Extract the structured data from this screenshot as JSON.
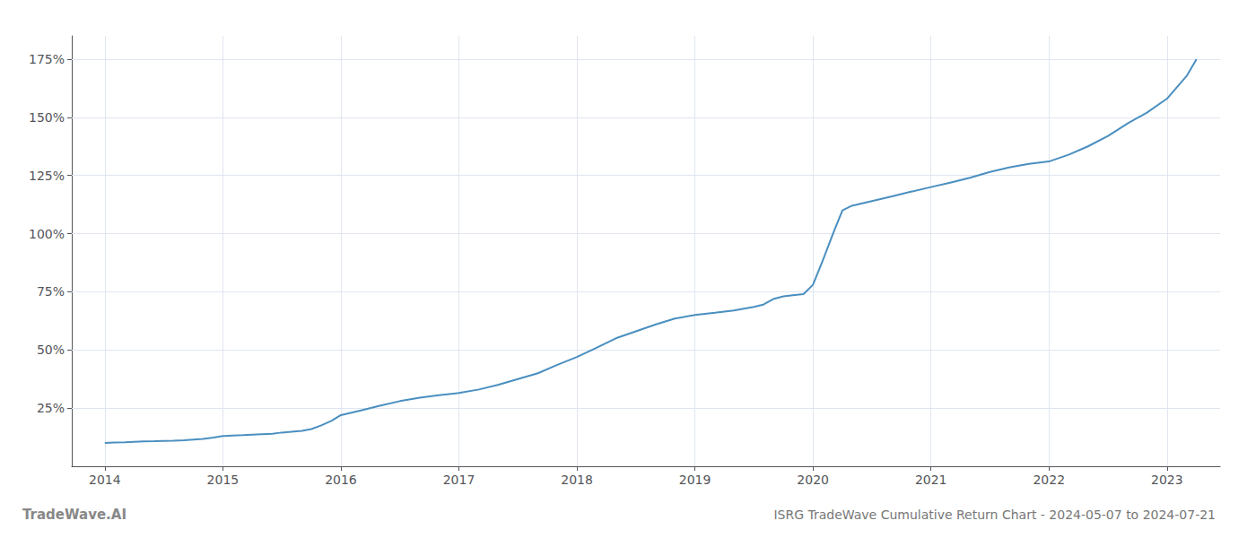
{
  "chart_data": {
    "type": "line",
    "title": "ISRG TradeWave Cumulative Return Chart - 2024-05-07 to 2024-07-21",
    "annotations": [
      "TradeWave.AI"
    ],
    "color": "#4a8fc0",
    "x": [
      2014.0,
      2014.08,
      2014.17,
      2014.25,
      2014.33,
      2014.42,
      2014.5,
      2014.58,
      2014.67,
      2014.75,
      2014.83,
      2014.92,
      2015.0,
      2015.08,
      2015.17,
      2015.25,
      2015.33,
      2015.42,
      2015.5,
      2015.58,
      2015.67,
      2015.75,
      2015.83,
      2015.92,
      2016.0,
      2016.17,
      2016.33,
      2016.5,
      2016.67,
      2016.83,
      2017.0,
      2017.17,
      2017.33,
      2017.5,
      2017.67,
      2017.83,
      2018.0,
      2018.17,
      2018.33,
      2018.5,
      2018.67,
      2018.83,
      2019.0,
      2019.17,
      2019.33,
      2019.5,
      2019.58,
      2019.67,
      2019.75,
      2019.83,
      2019.92,
      2020.0,
      2020.08,
      2020.17,
      2020.25,
      2020.33,
      2020.5,
      2020.67,
      2020.83,
      2021.0,
      2021.17,
      2021.33,
      2021.5,
      2021.67,
      2021.83,
      2022.0,
      2022.17,
      2022.33,
      2022.5,
      2022.67,
      2022.83,
      2023.0,
      2023.17,
      2023.25
    ],
    "values": [
      10.0,
      10.2,
      10.3,
      10.5,
      10.7,
      10.8,
      10.9,
      11.0,
      11.2,
      11.5,
      11.8,
      12.3,
      13.0,
      13.2,
      13.4,
      13.6,
      13.8,
      14.0,
      14.5,
      14.8,
      15.2,
      16.0,
      17.5,
      19.5,
      22.0,
      24.0,
      26.0,
      28.0,
      29.5,
      30.5,
      31.5,
      33.0,
      35.0,
      37.5,
      40.0,
      43.5,
      47.0,
      51.0,
      55.0,
      58.0,
      61.0,
      63.5,
      65.0,
      66.0,
      67.0,
      68.5,
      69.5,
      72.0,
      73.0,
      73.5,
      74.0,
      78.0,
      88.0,
      100.0,
      110.0,
      112.0,
      114.0,
      116.0,
      118.0,
      120.0,
      122.0,
      124.0,
      126.5,
      128.5,
      130.0,
      131.0,
      134.0,
      137.5,
      142.0,
      147.5,
      152.0,
      158.0,
      168.0,
      175.0
    ],
    "xlim": [
      2013.72,
      2023.45
    ],
    "xticks": [
      2014,
      2015,
      2016,
      2017,
      2018,
      2019,
      2020,
      2021,
      2022,
      2023
    ],
    "ylim": [
      0,
      185
    ],
    "yticks": [
      {
        "value": 25,
        "label": "25%"
      },
      {
        "value": 50,
        "label": "50%"
      },
      {
        "value": 75,
        "label": "75%"
      },
      {
        "value": 100,
        "label": "100%"
      },
      {
        "value": 125,
        "label": "125%"
      },
      {
        "value": 150,
        "label": "150%"
      },
      {
        "value": 175,
        "label": "175%"
      }
    ],
    "grid": true
  }
}
